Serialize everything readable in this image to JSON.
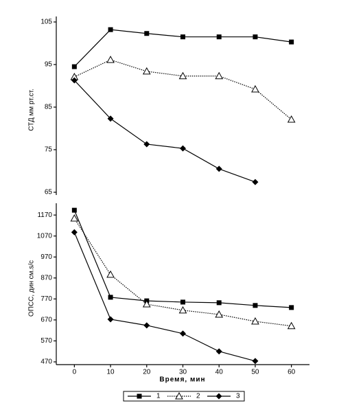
{
  "chart_data": [
    {
      "type": "line",
      "y_label": "СТД мм рт.ст.",
      "x": [
        0,
        10,
        20,
        30,
        40,
        50,
        60
      ],
      "xlim": [
        -5,
        65
      ],
      "ylim": [
        65,
        105
      ],
      "yticks": [
        105,
        95,
        85,
        75,
        65
      ],
      "series": [
        {
          "marker": "square",
          "color": "#000000",
          "values": [
            94.5,
            103.2,
            102.3,
            101.5,
            101.5,
            101.5,
            100.3
          ]
        },
        {
          "marker": "triangle",
          "color": "#000000",
          "values": [
            92.1,
            96.1,
            93.4,
            92.3,
            92.3,
            89.2,
            82.1
          ]
        },
        {
          "marker": "diamond",
          "color": "#000000",
          "values": [
            91.3,
            82.3,
            76.3,
            75.3,
            70.5,
            67.4,
            null
          ]
        }
      ]
    },
    {
      "type": "line",
      "y_label": "ОПСС, дин см.s/с",
      "x_label": "Время, мин",
      "x": [
        0,
        10,
        20,
        30,
        40,
        50,
        60
      ],
      "xlim": [
        -5,
        65
      ],
      "xticks": [
        0,
        10,
        20,
        30,
        40,
        50,
        60
      ],
      "ylim": [
        470,
        1200
      ],
      "yticks": [
        1170,
        1070,
        970,
        870,
        770,
        670,
        570,
        470
      ],
      "legend": "bottom",
      "series": [
        {
          "name": "1",
          "marker": "square",
          "color": "#000000",
          "values": [
            1193,
            778,
            761,
            755,
            752,
            739,
            729
          ]
        },
        {
          "name": "2",
          "marker": "triangle",
          "color": "#000000",
          "values": [
            1154,
            886,
            745,
            716,
            696,
            663,
            641
          ]
        },
        {
          "name": "3",
          "marker": "diamond",
          "color": "#000000",
          "values": [
            1088,
            673,
            644,
            605,
            520,
            474,
            null
          ]
        }
      ]
    }
  ]
}
